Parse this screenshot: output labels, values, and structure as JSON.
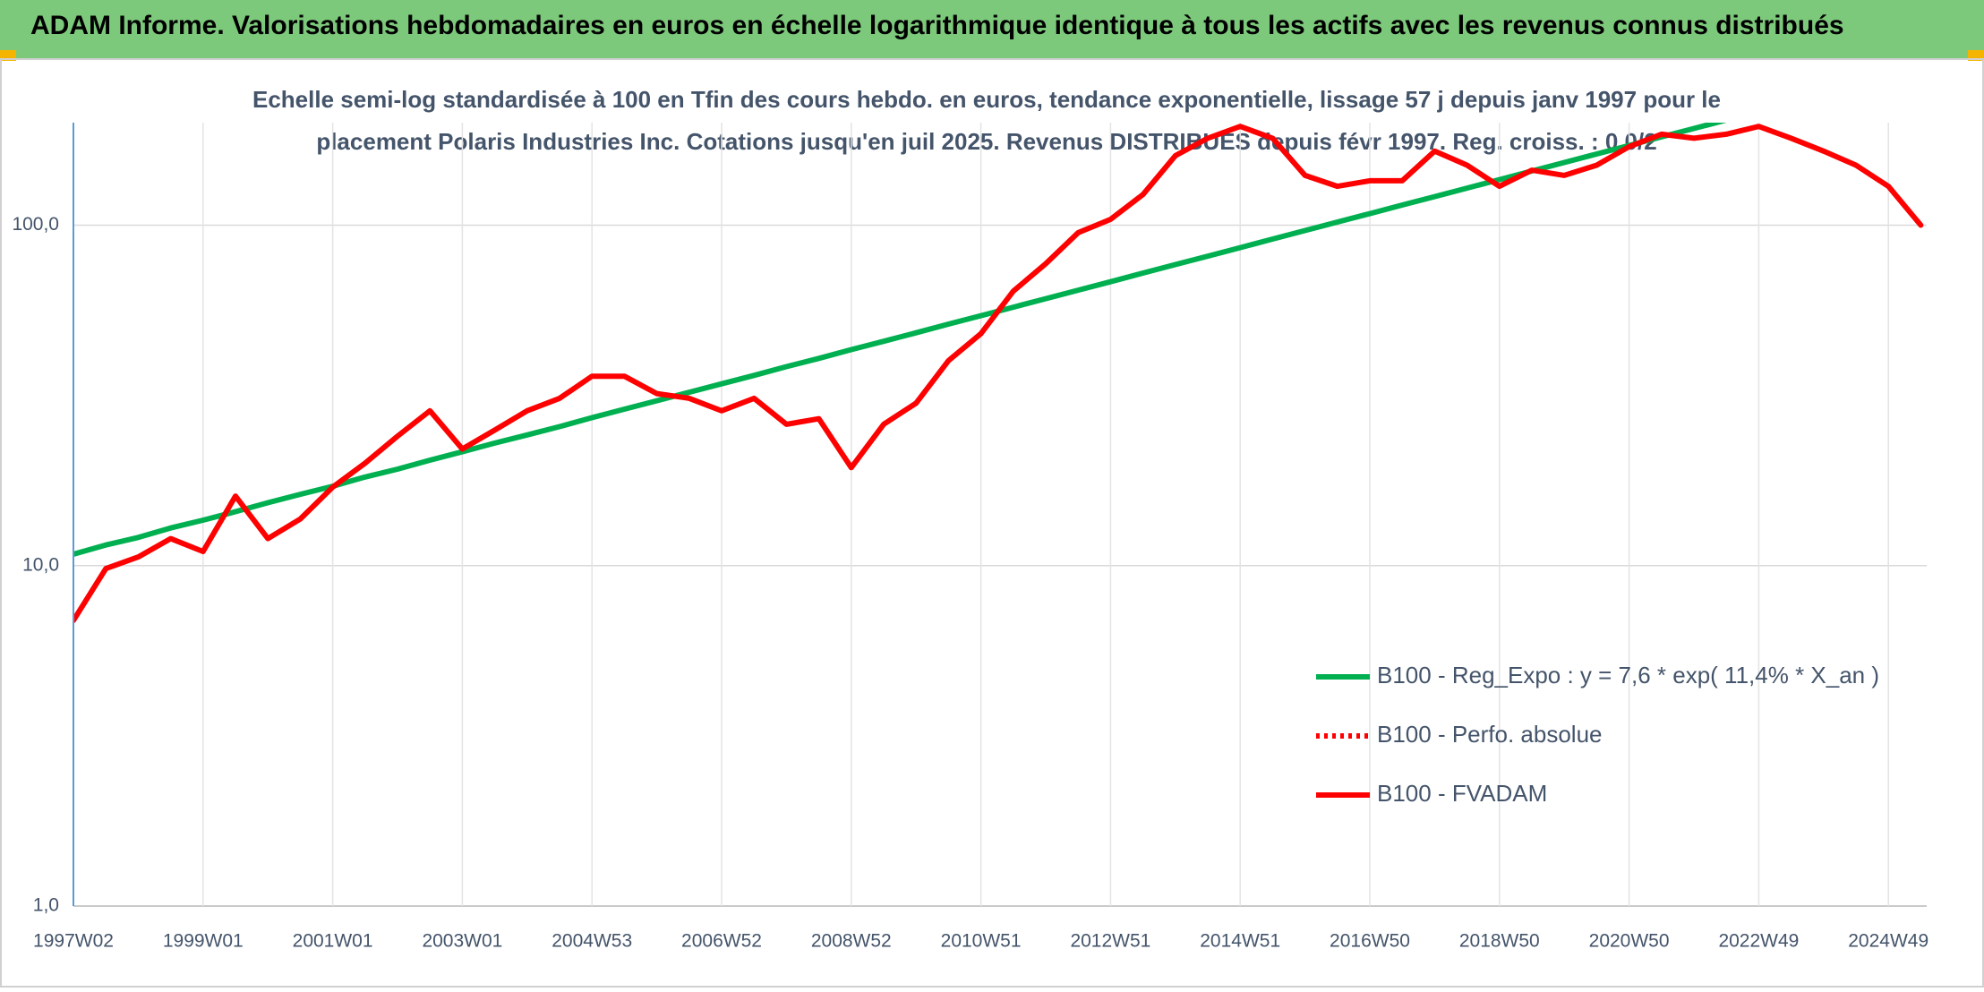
{
  "header": {
    "title": "ADAM Informe. Valorisations hebdomadaires en euros en échelle logarithmique identique à tous les actifs avec les revenus connus distribués"
  },
  "chart_data": {
    "type": "line",
    "subtitle": [
      "Echelle semi-log standardisée à 100 en Tfin des cours hebdo. en euros, tendance exponentielle, lissage 57 j depuis janv 1997 pour le",
      "placement Polaris Industries Inc. Cotations jusqu'en juil 2025. Revenus DISTRIBUES depuis févr 1997. Reg. croiss. : 0,0/2"
    ],
    "categories": [
      "1997W02",
      null,
      null,
      null,
      "1999W01",
      null,
      null,
      null,
      "2001W01",
      null,
      null,
      null,
      "2003W01",
      null,
      null,
      null,
      "2004W53",
      null,
      null,
      null,
      "2006W52",
      null,
      null,
      null,
      "2008W52",
      null,
      null,
      null,
      "2010W51",
      null,
      null,
      null,
      "2012W51",
      null,
      null,
      null,
      "2014W51",
      null,
      null,
      null,
      "2016W50",
      null,
      null,
      null,
      "2018W50",
      null,
      null,
      null,
      "2020W50",
      null,
      null,
      null,
      "2022W49",
      null,
      null,
      null,
      "2024W49",
      null
    ],
    "log_scale": true,
    "ylim": [
      1,
      200
    ],
    "yticks": [
      {
        "value": 1,
        "label": "1,0"
      },
      {
        "value": 10,
        "label": "10,0"
      },
      {
        "value": 100,
        "label": "100,0"
      }
    ],
    "grid": true,
    "legend_position": "right",
    "series": [
      {
        "name": "B100 - Reg_Expo : y = 7,6 * exp( 11,4% *  X_an )",
        "color": "#00b050",
        "dashed": false,
        "values": [
          10.8,
          11.5,
          12.1,
          12.9,
          13.6,
          14.4,
          15.3,
          16.2,
          17.1,
          18.2,
          19.2,
          20.4,
          21.6,
          22.9,
          24.2,
          25.6,
          27.2,
          28.8,
          30.5,
          32.3,
          34.2,
          36.2,
          38.4,
          40.6,
          43.1,
          45.6,
          48.3,
          51.2,
          54.2,
          57.4,
          60.8,
          64.4,
          68.2,
          72.3,
          76.6,
          81.1,
          85.9,
          91.0,
          96.4,
          102.1,
          108.1,
          114.6,
          121.3,
          128.5,
          136.1,
          144.2,
          152.8,
          161.8,
          171.4,
          181.6,
          192.3,
          203.7,
          null,
          null,
          null,
          null,
          null,
          null
        ]
      },
      {
        "name": "B100 - Perfo. absolue",
        "color": "#ff0000",
        "dashed": true,
        "values": [
          null,
          null,
          null,
          null,
          null,
          null,
          null,
          null,
          null,
          null,
          null,
          null,
          null,
          null,
          null,
          null,
          null,
          null,
          null,
          null,
          null,
          null,
          null,
          null,
          null,
          null,
          null,
          null,
          null,
          null,
          null,
          null,
          null,
          null,
          null,
          null,
          null,
          null,
          null,
          null,
          null,
          null,
          null,
          null,
          null,
          null,
          null,
          null,
          null,
          null,
          null,
          null,
          null,
          null,
          null,
          null,
          null,
          null
        ]
      },
      {
        "name": "B100 - FVADAM",
        "color": "#ff0000",
        "dashed": false,
        "values": [
          6.9,
          9.8,
          10.6,
          12,
          11,
          16,
          12,
          13.7,
          17,
          20,
          24,
          28.5,
          22,
          25,
          28.5,
          31,
          36,
          36,
          32,
          31,
          28.5,
          31,
          26,
          27,
          19.4,
          26,
          30,
          40,
          48,
          64,
          77,
          95,
          104,
          123,
          160,
          180,
          195,
          180,
          140,
          130,
          135,
          135,
          165,
          150,
          130,
          145,
          140,
          150,
          170,
          185,
          180,
          185,
          195,
          180,
          165,
          150,
          130,
          100
        ]
      }
    ]
  }
}
